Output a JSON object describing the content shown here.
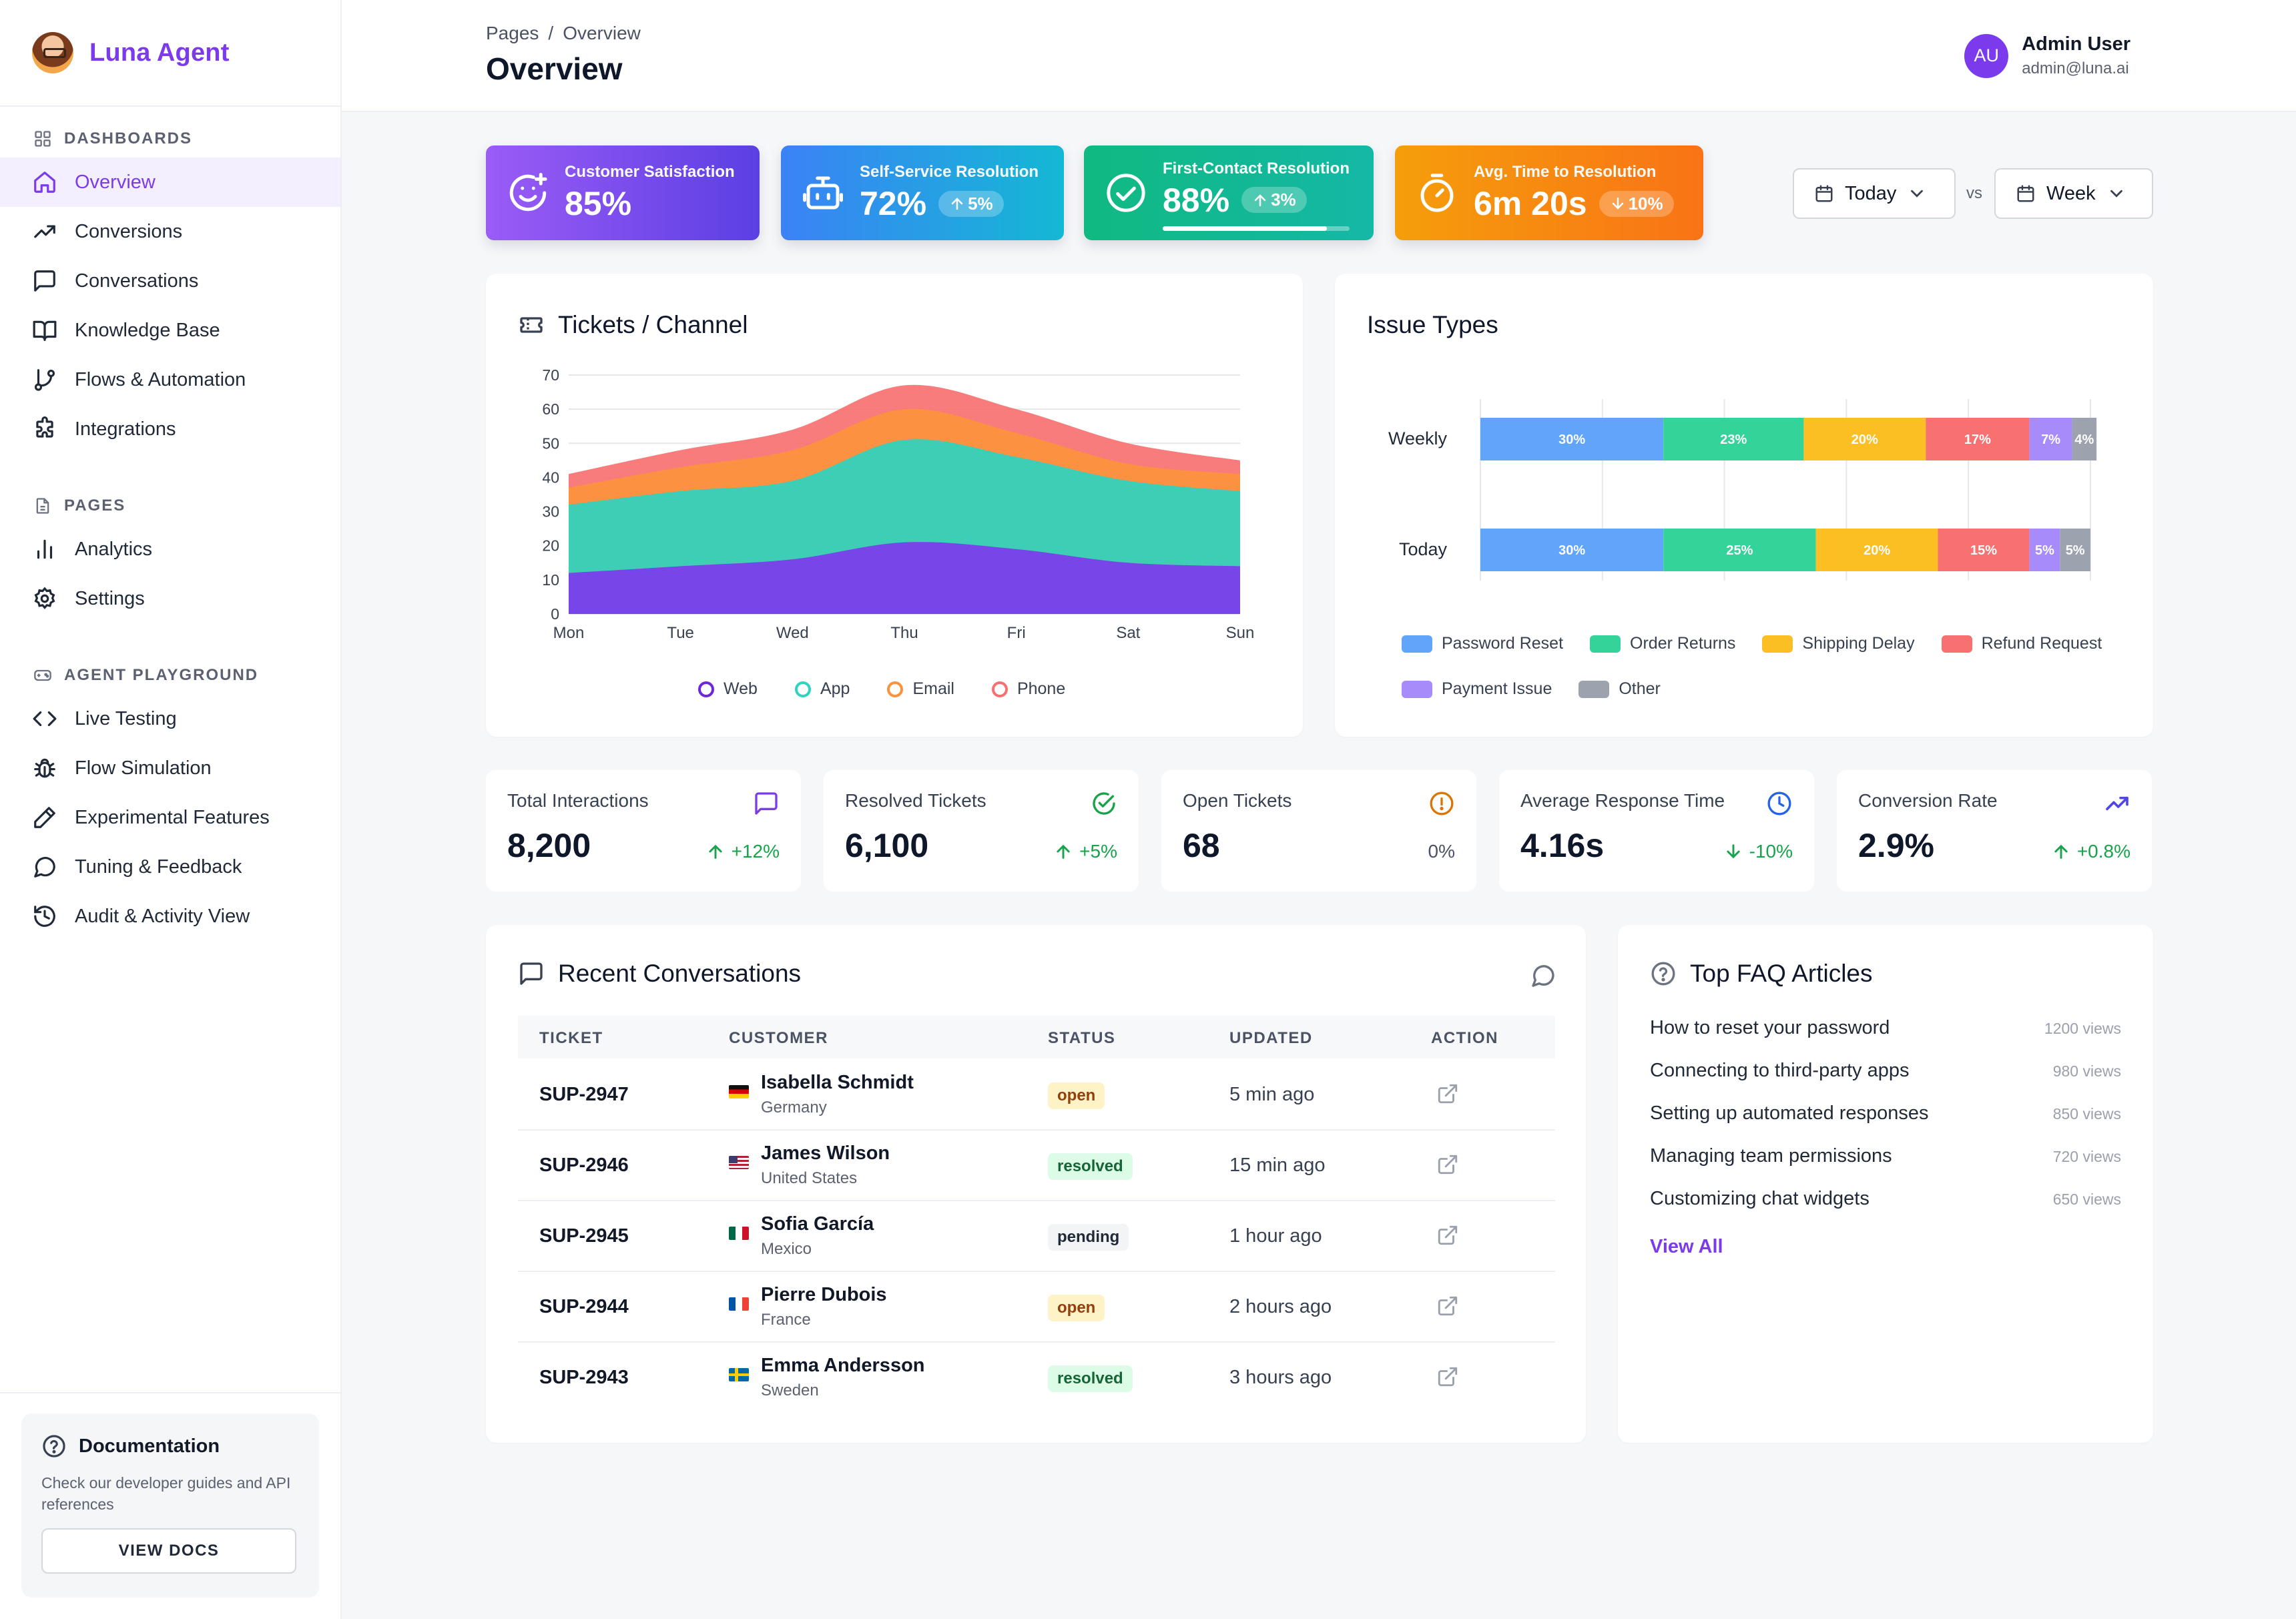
{
  "app": {
    "brand": "Luna Agent"
  },
  "sidebar": {
    "sections": [
      {
        "title": "DASHBOARDS",
        "items": [
          {
            "label": "Overview",
            "icon": "home-icon",
            "active": true
          },
          {
            "label": "Conversions",
            "icon": "trending-up-icon"
          },
          {
            "label": "Conversations",
            "icon": "message-square-icon"
          },
          {
            "label": "Knowledge Base",
            "icon": "book-open-icon"
          },
          {
            "label": "Flows & Automation",
            "icon": "git-branch-icon"
          },
          {
            "label": "Integrations",
            "icon": "puzzle-icon"
          }
        ]
      },
      {
        "title": "PAGES",
        "items": [
          {
            "label": "Analytics",
            "icon": "bar-chart-icon"
          },
          {
            "label": "Settings",
            "icon": "gear-icon"
          }
        ]
      },
      {
        "title": "AGENT PLAYGROUND",
        "items": [
          {
            "label": "Live Testing",
            "icon": "code-icon"
          },
          {
            "label": "Flow Simulation",
            "icon": "bug-icon"
          },
          {
            "label": "Experimental Features",
            "icon": "pencil-icon"
          },
          {
            "label": "Tuning & Feedback",
            "icon": "chat-bubble-icon"
          },
          {
            "label": "Audit & Activity View",
            "icon": "history-icon"
          }
        ]
      }
    ],
    "docs": {
      "title": "Documentation",
      "description": "Check our developer guides and API references",
      "button": "VIEW DOCS"
    }
  },
  "header": {
    "breadcrumb": [
      "Pages",
      "Overview"
    ],
    "title": "Overview",
    "user": {
      "initials": "AU",
      "name": "Admin User",
      "email": "admin@luna.ai"
    }
  },
  "kpis": [
    {
      "label": "Customer Satisfaction",
      "value": "85%",
      "icon": "smile-plus-icon"
    },
    {
      "label": "Self-Service Resolution",
      "value": "72%",
      "badge": "5%",
      "trend": "up",
      "icon": "bot-icon"
    },
    {
      "label": "First-Contact Resolution",
      "value": "88%",
      "badge": "3%",
      "trend": "up",
      "progress": 0.88,
      "icon": "check-circle-icon"
    },
    {
      "label": "Avg. Time to Resolution",
      "value": "6m 20s",
      "badge": "10%",
      "trend": "down",
      "icon": "timer-icon"
    }
  ],
  "filters": {
    "current": "Today",
    "vs": "vs",
    "compare": "Week"
  },
  "tickets_chart": {
    "title": "Tickets / Channel",
    "chart_data": {
      "type": "area",
      "stacked": true,
      "categories": [
        "Mon",
        "Tue",
        "Wed",
        "Thu",
        "Fri",
        "Sat",
        "Sun"
      ],
      "ylim": [
        0,
        70
      ],
      "yticks": [
        0,
        10,
        20,
        30,
        40,
        50,
        60,
        70
      ],
      "grid": true,
      "legend": "bottom",
      "series": [
        {
          "name": "Web",
          "color": "#7c3aed",
          "values": [
            12,
            14,
            16,
            21,
            19,
            15,
            14
          ]
        },
        {
          "name": "App",
          "color": "#2dd4bf",
          "values": [
            20,
            22,
            23,
            30,
            27,
            24,
            22
          ]
        },
        {
          "name": "Email",
          "color": "#fb923c",
          "values": [
            5,
            7,
            9,
            9,
            7,
            5,
            5
          ]
        },
        {
          "name": "Phone",
          "color": "#f87171",
          "values": [
            4,
            5,
            6,
            7,
            7,
            6,
            4
          ]
        }
      ]
    }
  },
  "issue_chart": {
    "title": "Issue Types",
    "chart_data": {
      "type": "bar",
      "orientation": "horizontal",
      "stacked": true,
      "categories": [
        "Weekly",
        "Today"
      ],
      "xlim": [
        0,
        100
      ],
      "grid": true,
      "legend": "bottom",
      "series": [
        {
          "name": "Password Reset",
          "color": "#60a5fa",
          "values": [
            30,
            30
          ]
        },
        {
          "name": "Order Returns",
          "color": "#34d399",
          "values": [
            23,
            25
          ]
        },
        {
          "name": "Shipping Delay",
          "color": "#fbbf24",
          "values": [
            20,
            20
          ]
        },
        {
          "name": "Refund Request",
          "color": "#f87171",
          "values": [
            17,
            15
          ]
        },
        {
          "name": "Payment Issue",
          "color": "#a78bfa",
          "values": [
            7,
            5
          ]
        },
        {
          "name": "Other",
          "color": "#9ca3af",
          "values": [
            4,
            5
          ]
        }
      ]
    }
  },
  "stats": [
    {
      "label": "Total Interactions",
      "value": "8,200",
      "delta": "+12%",
      "trend": "up",
      "icon": "message-square-icon",
      "icon_color": "#7c3aed"
    },
    {
      "label": "Resolved Tickets",
      "value": "6,100",
      "delta": "+5%",
      "trend": "up",
      "icon": "check-circle-icon",
      "icon_color": "#16a34a"
    },
    {
      "label": "Open Tickets",
      "value": "68",
      "delta": "0%",
      "trend": "flat",
      "icon": "alert-circle-icon",
      "icon_color": "#d97706"
    },
    {
      "label": "Average Response Time",
      "value": "4.16s",
      "delta": "-10%",
      "trend": "down",
      "icon": "clock-icon",
      "icon_color": "#2563eb"
    },
    {
      "label": "Conversion Rate",
      "value": "2.9%",
      "delta": "+0.8%",
      "trend": "up",
      "icon": "trending-up-icon",
      "icon_color": "#4f46e5"
    }
  ],
  "recent": {
    "title": "Recent Conversations",
    "columns": [
      "TICKET",
      "CUSTOMER",
      "STATUS",
      "UPDATED",
      "ACTION"
    ],
    "rows": [
      {
        "ticket": "SUP-2947",
        "name": "Isabella Schmidt",
        "country": "Germany",
        "flag": "de",
        "status": "open",
        "updated": "5 min ago"
      },
      {
        "ticket": "SUP-2946",
        "name": "James Wilson",
        "country": "United States",
        "flag": "us",
        "status": "resolved",
        "updated": "15 min ago"
      },
      {
        "ticket": "SUP-2945",
        "name": "Sofia García",
        "country": "Mexico",
        "flag": "mx",
        "status": "pending",
        "updated": "1 hour ago"
      },
      {
        "ticket": "SUP-2944",
        "name": "Pierre Dubois",
        "country": "France",
        "flag": "fr",
        "status": "open",
        "updated": "2 hours ago"
      },
      {
        "ticket": "SUP-2943",
        "name": "Emma Andersson",
        "country": "Sweden",
        "flag": "se",
        "status": "resolved",
        "updated": "3 hours ago"
      }
    ]
  },
  "faq": {
    "title": "Top FAQ Articles",
    "articles": [
      {
        "title": "How to reset your password",
        "views": "1200 views"
      },
      {
        "title": "Connecting to third-party apps",
        "views": "980 views"
      },
      {
        "title": "Setting up automated responses",
        "views": "850 views"
      },
      {
        "title": "Managing team permissions",
        "views": "720 views"
      },
      {
        "title": "Customizing chat widgets",
        "views": "650 views"
      }
    ],
    "view_all": "View All"
  }
}
